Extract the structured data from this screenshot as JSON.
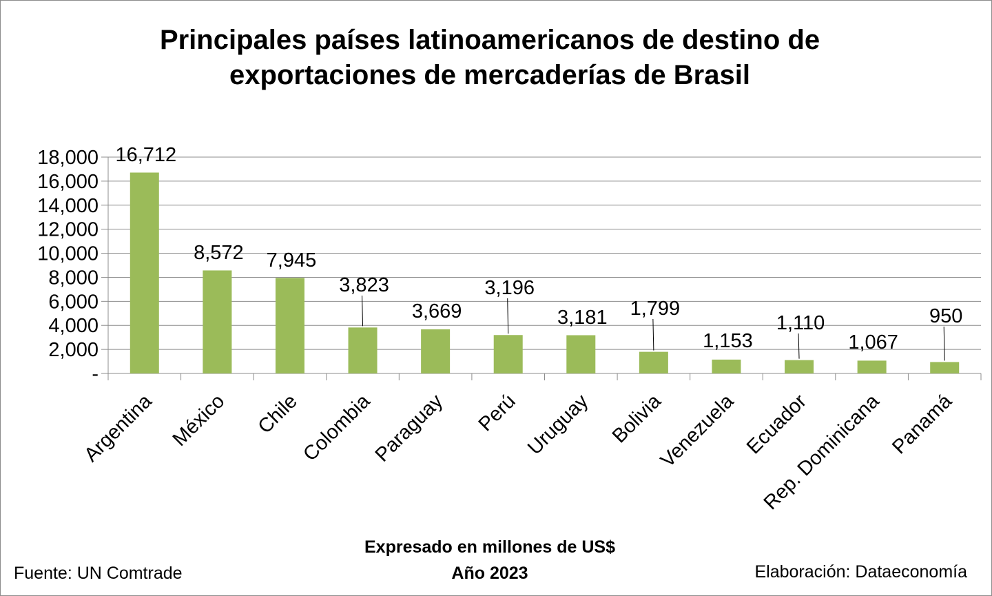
{
  "chart_data": {
    "type": "bar",
    "title_lines": [
      "Principales países latinoamericanos de destino de",
      "exportaciones de mercaderías de Brasil"
    ],
    "categories": [
      "Argentina",
      "México",
      "Chile",
      "Colombia",
      "Paraguay",
      "Perú",
      "Uruguay",
      "Bolivia",
      "Venezuela",
      "Ecuador",
      "Rep. Dominicana",
      "Panamá"
    ],
    "values": [
      16712,
      8572,
      7945,
      3823,
      3669,
      3196,
      3181,
      1799,
      1153,
      1110,
      1067,
      950
    ],
    "value_labels": [
      "16,712",
      "8,572",
      "7,945",
      "3,823",
      "3,669",
      "3,196",
      "3,181",
      "1,799",
      "1,153",
      "1,110",
      "1,067",
      "950"
    ],
    "ylim": [
      0,
      18000
    ],
    "yticks": [
      0,
      2000,
      4000,
      6000,
      8000,
      10000,
      12000,
      14000,
      16000,
      18000
    ],
    "ytick_labels": [
      "-",
      "2,000",
      "4,000",
      "6,000",
      "8,000",
      "10,000",
      "12,000",
      "14,000",
      "16,000",
      "18,000"
    ],
    "grid": true,
    "bar_color": "#9BBB59",
    "xlabel": "Expresado en millones de US$",
    "subtitle": "Año 2023"
  },
  "footer": {
    "source": "Fuente: UN Comtrade",
    "credit": "Elaboración: Dataeconomía"
  }
}
